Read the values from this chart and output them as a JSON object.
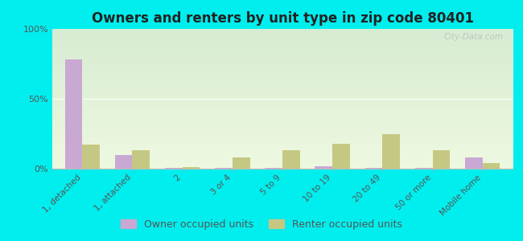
{
  "title": "Owners and renters by unit type in zip code 80401",
  "categories": [
    "1, detached",
    "1, attached",
    "2",
    "3 or 4",
    "5 to 9",
    "10 to 19",
    "20 to 49",
    "50 or more",
    "Mobile home"
  ],
  "owner_values": [
    78,
    10,
    0.5,
    0.5,
    0.5,
    2,
    0.5,
    0.5,
    8
  ],
  "renter_values": [
    17,
    13,
    1,
    8,
    13,
    18,
    25,
    13,
    4
  ],
  "owner_color": "#c9a8d4",
  "renter_color": "#c5c882",
  "outer_bg": "#00eeee",
  "ylim": [
    0,
    100
  ],
  "yticks": [
    0,
    50,
    100
  ],
  "ytick_labels": [
    "0%",
    "50%",
    "100%"
  ],
  "bar_width": 0.35,
  "legend_owner": "Owner occupied units",
  "legend_renter": "Renter occupied units",
  "grad_top": "#d6ecd2",
  "grad_bottom": "#eef8e0"
}
